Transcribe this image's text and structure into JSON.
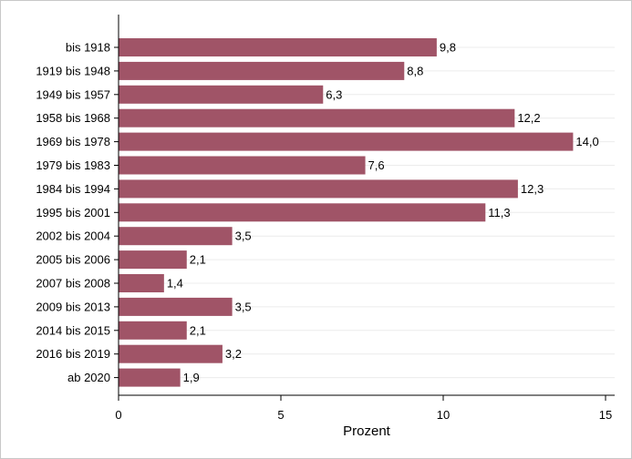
{
  "chart_data": {
    "type": "bar",
    "orientation": "horizontal",
    "categories": [
      "bis 1918",
      "1919 bis 1948",
      "1949 bis 1957",
      "1958 bis 1968",
      "1969 bis 1978",
      "1979 bis 1983",
      "1984 bis 1994",
      "1995 bis 2001",
      "2002 bis 2004",
      "2005 bis 2006",
      "2007 bis 2008",
      "2009 bis 2013",
      "2014 bis 2015",
      "2016 bis 2019",
      "ab 2020"
    ],
    "values": [
      9.8,
      8.8,
      6.3,
      12.2,
      14.0,
      7.6,
      12.3,
      11.3,
      3.5,
      2.1,
      1.4,
      3.5,
      2.1,
      3.2,
      1.9
    ],
    "value_labels": [
      "9,8",
      "8,8",
      "6,3",
      "12,2",
      "14,0",
      "7,6",
      "12,3",
      "11,3",
      "3,5",
      "2,1",
      "1,4",
      "3,5",
      "2,1",
      "3,2",
      "1,9"
    ],
    "xlabel": "Prozent",
    "ylabel": "",
    "xlim": [
      0,
      15
    ],
    "xticks": [
      0,
      5,
      10,
      15
    ],
    "xtick_labels": [
      "0",
      "5",
      "10",
      "15"
    ],
    "bar_color": "#a05467",
    "grid": true
  }
}
